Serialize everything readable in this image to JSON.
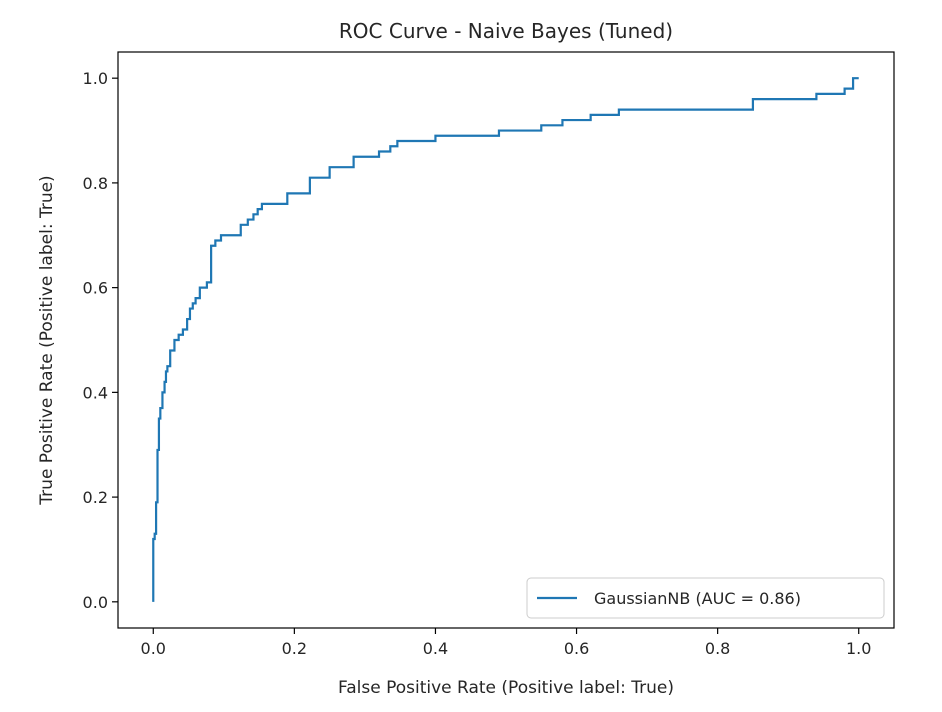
{
  "chart_data": {
    "type": "line",
    "title": "ROC Curve - Naive Bayes (Tuned)",
    "xlabel": "False Positive Rate (Positive label: True)",
    "ylabel": "True Positive Rate (Positive label: True)",
    "xlim": [
      -0.05,
      1.05
    ],
    "ylim": [
      -0.05,
      1.05
    ],
    "xticks": [
      0.0,
      0.2,
      0.4,
      0.6,
      0.8,
      1.0
    ],
    "xtick_labels": [
      "0.0",
      "0.2",
      "0.4",
      "0.6",
      "0.8",
      "1.0"
    ],
    "yticks": [
      0.0,
      0.2,
      0.4,
      0.6,
      0.8,
      1.0
    ],
    "ytick_labels": [
      "0.0",
      "0.2",
      "0.4",
      "0.6",
      "0.8",
      "1.0"
    ],
    "grid": false,
    "legend_position": "bottom-right",
    "series": [
      {
        "name": "GaussianNB (AUC = 0.86)",
        "color": "#1f77b4",
        "x": [
          0.0,
          0.0,
          0.002,
          0.002,
          0.004,
          0.004,
          0.006,
          0.006,
          0.008,
          0.008,
          0.01,
          0.01,
          0.013,
          0.013,
          0.016,
          0.016,
          0.018,
          0.018,
          0.02,
          0.02,
          0.024,
          0.024,
          0.03,
          0.03,
          0.036,
          0.036,
          0.042,
          0.042,
          0.048,
          0.048,
          0.052,
          0.052,
          0.056,
          0.056,
          0.06,
          0.06,
          0.066,
          0.066,
          0.076,
          0.076,
          0.082,
          0.082,
          0.088,
          0.088,
          0.096,
          0.096,
          0.11,
          0.11,
          0.124,
          0.124,
          0.134,
          0.134,
          0.142,
          0.142,
          0.148,
          0.148,
          0.154,
          0.154,
          0.16,
          0.16,
          0.19,
          0.19,
          0.2,
          0.2,
          0.222,
          0.222,
          0.23,
          0.23,
          0.25,
          0.25,
          0.26,
          0.26,
          0.284,
          0.284,
          0.3,
          0.3,
          0.32,
          0.32,
          0.336,
          0.336,
          0.346,
          0.346,
          0.4,
          0.4,
          0.49,
          0.49,
          0.55,
          0.55,
          0.58,
          0.58,
          0.62,
          0.62,
          0.66,
          0.66,
          0.85,
          0.85,
          0.94,
          0.94,
          0.98,
          0.98,
          0.992,
          0.992,
          1.0
        ],
        "y": [
          0.0,
          0.12,
          0.12,
          0.13,
          0.13,
          0.19,
          0.19,
          0.29,
          0.29,
          0.35,
          0.35,
          0.37,
          0.37,
          0.4,
          0.4,
          0.42,
          0.42,
          0.44,
          0.44,
          0.45,
          0.45,
          0.48,
          0.48,
          0.5,
          0.5,
          0.51,
          0.51,
          0.52,
          0.52,
          0.54,
          0.54,
          0.56,
          0.56,
          0.57,
          0.57,
          0.58,
          0.58,
          0.6,
          0.6,
          0.61,
          0.61,
          0.68,
          0.68,
          0.69,
          0.69,
          0.7,
          0.7,
          0.7,
          0.7,
          0.72,
          0.72,
          0.73,
          0.73,
          0.74,
          0.74,
          0.75,
          0.75,
          0.76,
          0.76,
          0.76,
          0.76,
          0.78,
          0.78,
          0.78,
          0.78,
          0.81,
          0.81,
          0.81,
          0.81,
          0.83,
          0.83,
          0.83,
          0.83,
          0.85,
          0.85,
          0.85,
          0.85,
          0.86,
          0.86,
          0.87,
          0.87,
          0.88,
          0.88,
          0.89,
          0.89,
          0.9,
          0.9,
          0.91,
          0.91,
          0.92,
          0.92,
          0.93,
          0.93,
          0.94,
          0.94,
          0.96,
          0.96,
          0.97,
          0.97,
          0.98,
          0.98,
          1.0,
          1.0
        ]
      }
    ]
  }
}
